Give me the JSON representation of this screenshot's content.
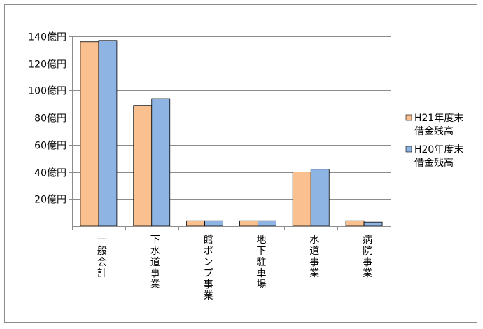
{
  "chart_data": {
    "type": "bar",
    "categories": [
      "一般会計",
      "下水道事業",
      "館ポンプ事業",
      "地下駐車場",
      "水道事業",
      "病院事業"
    ],
    "series": [
      {
        "name": "H21年度末借金残高",
        "values": [
          136,
          89,
          4,
          4,
          40,
          4
        ],
        "color": "#FAC090"
      },
      {
        "name": "H20年度末借金残高",
        "values": [
          137,
          94,
          4,
          4,
          42,
          3
        ],
        "color": "#8EB4E3"
      }
    ],
    "ylim": [
      0,
      140
    ],
    "yticks": [
      {
        "value": 20,
        "label": "20億円"
      },
      {
        "value": 40,
        "label": "40億円"
      },
      {
        "value": 60,
        "label": "60億円"
      },
      {
        "value": 80,
        "label": "80億円"
      },
      {
        "value": 100,
        "label": "100億円"
      },
      {
        "value": 120,
        "label": "120億円"
      },
      {
        "value": 140,
        "label": "140億円"
      }
    ],
    "legend": {
      "position": "right",
      "entries": [
        {
          "line1": "H21年度末",
          "line2": "借金残高"
        },
        {
          "line1": "H20年度末",
          "line2": "借金残高"
        }
      ]
    },
    "grid": true
  }
}
